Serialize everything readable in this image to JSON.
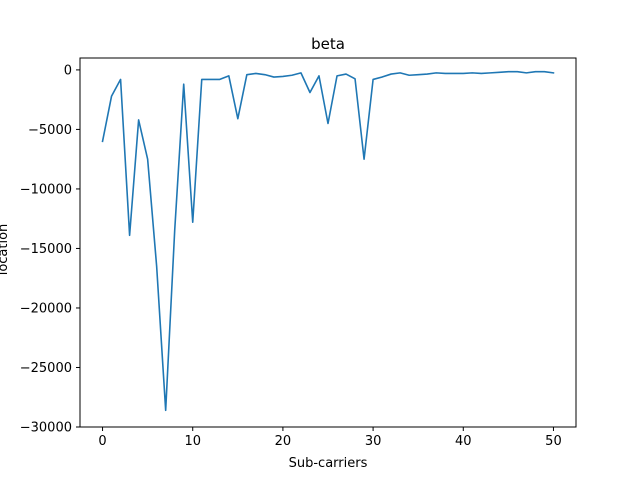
{
  "chart_data": {
    "type": "line",
    "title": "beta",
    "xlabel": "Sub-carriers",
    "ylabel": "location",
    "xlim": [
      -2.5,
      52.5
    ],
    "ylim": [
      -30000,
      1000
    ],
    "xticks": [
      0,
      10,
      20,
      30,
      40,
      50
    ],
    "yticks": [
      0,
      -5000,
      -10000,
      -15000,
      -20000,
      -25000,
      -30000
    ],
    "grid": false,
    "line_color": "#1f77b4",
    "series": [
      {
        "x": [
          0,
          1,
          2,
          3,
          4,
          5,
          6,
          7,
          8,
          9,
          10,
          11,
          12,
          13,
          14,
          15,
          16,
          17,
          18,
          19,
          20,
          21,
          22,
          23,
          24,
          25,
          26,
          27,
          28,
          29,
          30,
          31,
          32,
          33,
          34,
          35,
          36,
          37,
          38,
          39,
          40,
          41,
          42,
          43,
          44,
          45,
          46,
          47,
          48,
          49,
          50
        ],
        "values": [
          -6000,
          -2200,
          -800,
          -13900,
          -4200,
          -7500,
          -16500,
          -28600,
          -13500,
          -1200,
          -12800,
          -800,
          -800,
          -800,
          -500,
          -4100,
          -400,
          -300,
          -400,
          -600,
          -550,
          -450,
          -250,
          -1900,
          -500,
          -4500,
          -500,
          -350,
          -750,
          -7500,
          -800,
          -600,
          -350,
          -250,
          -450,
          -400,
          -350,
          -250,
          -300,
          -300,
          -300,
          -250,
          -300,
          -250,
          -200,
          -150,
          -150,
          -250,
          -150,
          -150,
          -250
        ]
      }
    ]
  }
}
